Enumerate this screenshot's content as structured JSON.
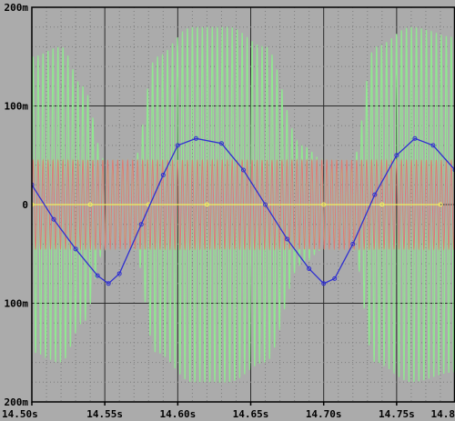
{
  "chart_data": {
    "type": "line",
    "title": "",
    "xlabel": "",
    "ylabel": "",
    "xlim": [
      14.5,
      14.79
    ],
    "ylim": [
      -0.2,
      0.2
    ],
    "x_ticks": [
      {
        "value": 14.5,
        "label": "14.50s"
      },
      {
        "value": 14.55,
        "label": "14.55s"
      },
      {
        "value": 14.6,
        "label": "14.60s"
      },
      {
        "value": 14.65,
        "label": "14.65s"
      },
      {
        "value": 14.7,
        "label": "14.70s"
      },
      {
        "value": 14.75,
        "label": "14.75s"
      },
      {
        "value": 14.8,
        "label": "14.8"
      }
    ],
    "y_ticks": [
      {
        "value": 0.2,
        "label": "200m"
      },
      {
        "value": 0.1,
        "label": "100m"
      },
      {
        "value": 0.0,
        "label": "0"
      },
      {
        "value": -0.1,
        "label": "100m"
      },
      {
        "value": -0.2,
        "label": "200m"
      }
    ],
    "grid": true,
    "series": [
      {
        "color": "#90e890",
        "marker": "none",
        "kind": "modulated-carrier",
        "carrier_cycles": 85,
        "envelope_x": [
          14.5,
          14.52,
          14.535,
          14.55,
          14.57,
          14.585,
          14.61,
          14.635,
          14.66,
          14.685,
          14.7,
          14.72,
          14.735,
          14.76,
          14.79
        ],
        "envelope_y": [
          0.15,
          0.16,
          0.12,
          0.045,
          0.045,
          0.15,
          0.18,
          0.18,
          0.16,
          0.06,
          0.045,
          0.045,
          0.16,
          0.18,
          0.17
        ]
      },
      {
        "color": "#e07878",
        "marker": "none",
        "kind": "carrier",
        "carrier_cycles": 85,
        "amplitude": 0.045
      },
      {
        "color": "#f0f060",
        "marker": "circle",
        "x": [
          14.5,
          14.54,
          14.58,
          14.62,
          14.66,
          14.7,
          14.74,
          14.78
        ],
        "y": [
          0.0,
          0.0,
          0.0,
          0.0,
          0.0,
          0.0,
          0.0,
          0.0
        ]
      },
      {
        "color": "#3030d0",
        "marker": "circle",
        "x": [
          14.5,
          14.515,
          14.53,
          14.545,
          14.5525,
          14.56,
          14.575,
          14.59,
          14.6,
          14.6125,
          14.63,
          14.645,
          14.66,
          14.675,
          14.69,
          14.7,
          14.7075,
          14.72,
          14.735,
          14.75,
          14.7625,
          14.775,
          14.79
        ],
        "y": [
          0.02,
          -0.015,
          -0.045,
          -0.072,
          -0.08,
          -0.07,
          -0.02,
          0.03,
          0.06,
          0.067,
          0.062,
          0.035,
          0.0,
          -0.035,
          -0.065,
          -0.08,
          -0.075,
          -0.04,
          0.01,
          0.05,
          0.067,
          0.06,
          0.035
        ]
      }
    ]
  }
}
